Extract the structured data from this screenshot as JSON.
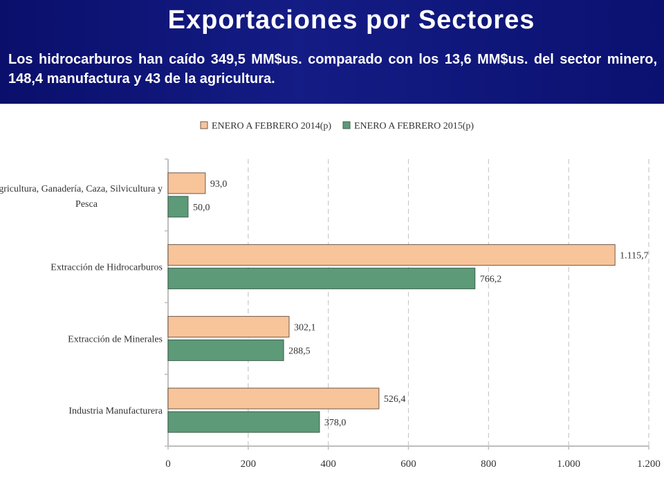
{
  "header": {
    "title": "Exportaciones por Sectores",
    "subtitle": "Los hidrocarburos han caído 349,5 MM$us. comparado con los 13,6 MM$us. del sector minero, 148,4 manufactura y 43 de la agricultura."
  },
  "colors": {
    "header_bg": "#0a0f6b",
    "series_2014": "#f8c49a",
    "series_2015": "#5c9a78"
  },
  "chart_data": {
    "type": "bar",
    "orientation": "horizontal",
    "categories": [
      [
        "Agricultura, Ganadería, Caza, Silvicultura y",
        "Pesca"
      ],
      [
        "Extracción de Hidrocarburos"
      ],
      [
        "Extracción de Minerales"
      ],
      [
        "Industria Manufacturera"
      ]
    ],
    "series": [
      {
        "name": "ENERO A FEBRERO 2014(p)",
        "values": [
          93.0,
          1115.7,
          302.1,
          526.4
        ],
        "labels": [
          "93,0",
          "1.115,7",
          "302,1",
          "526,4"
        ]
      },
      {
        "name": "ENERO A FEBRERO 2015(p)",
        "values": [
          50.0,
          766.2,
          288.5,
          378.0
        ],
        "labels": [
          "50,0",
          "766,2",
          "288,5",
          "378,0"
        ]
      }
    ],
    "xlim": [
      0,
      1200
    ],
    "xticks": [
      0,
      200,
      400,
      600,
      800,
      1000,
      1200
    ],
    "xtick_labels": [
      "0",
      "200",
      "400",
      "600",
      "800",
      "1.000",
      "1.200"
    ],
    "grid": "vertical dashed",
    "legend": "top"
  }
}
